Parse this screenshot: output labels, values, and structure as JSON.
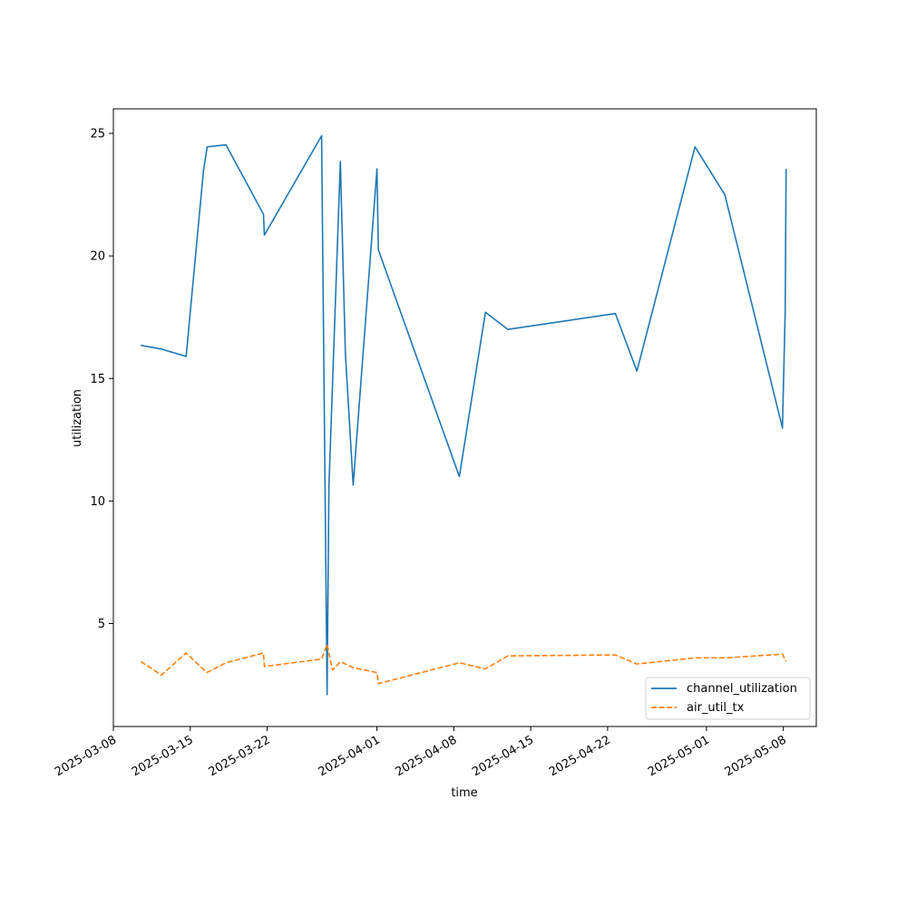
{
  "chart_data": {
    "type": "line",
    "title": "",
    "xlabel": "time",
    "ylabel": "utilization",
    "x_type": "datetime",
    "xlim": [
      "2025-03-08T00:00",
      "2025-05-11T00:00"
    ],
    "ylim": [
      0.8,
      26.0
    ],
    "x_ticks": [
      "2025-03-08",
      "2025-03-15",
      "2025-03-22",
      "2025-04-01",
      "2025-04-08",
      "2025-04-15",
      "2025-04-22",
      "2025-05-01",
      "2025-05-08"
    ],
    "y_ticks": [
      5,
      10,
      15,
      20,
      25
    ],
    "grid": false,
    "legend_position": "lower right",
    "series": [
      {
        "name": "channel_utilization",
        "color": "#1f77b4",
        "dash": "solid",
        "points": [
          {
            "x": "2025-03-10T12:00",
            "y": 16.35
          },
          {
            "x": "2025-03-12T09:00",
            "y": 16.2
          },
          {
            "x": "2025-03-14T15:00",
            "y": 15.9
          },
          {
            "x": "2025-03-16T05:00",
            "y": 23.5
          },
          {
            "x": "2025-03-16T13:00",
            "y": 24.45
          },
          {
            "x": "2025-03-18T06:00",
            "y": 24.53
          },
          {
            "x": "2025-03-21T16:00",
            "y": 21.7
          },
          {
            "x": "2025-03-21T18:00",
            "y": 20.85
          },
          {
            "x": "2025-03-26T23:00",
            "y": 24.9
          },
          {
            "x": "2025-03-27T11:00",
            "y": 2.1
          },
          {
            "x": "2025-03-27T15:00",
            "y": 10.6
          },
          {
            "x": "2025-03-28T16:00",
            "y": 23.85
          },
          {
            "x": "2025-03-29T03:00",
            "y": 16.0
          },
          {
            "x": "2025-03-29T20:00",
            "y": 10.65
          },
          {
            "x": "2025-04-01T00:00",
            "y": 23.55
          },
          {
            "x": "2025-04-01T03:00",
            "y": 20.25
          },
          {
            "x": "2025-04-08T12:00",
            "y": 11.0
          },
          {
            "x": "2025-04-10T21:00",
            "y": 17.7
          },
          {
            "x": "2025-04-12T22:00",
            "y": 17.0
          },
          {
            "x": "2025-04-22T17:00",
            "y": 17.65
          },
          {
            "x": "2025-04-24T16:00",
            "y": 15.3
          },
          {
            "x": "2025-04-29T23:00",
            "y": 24.45
          },
          {
            "x": "2025-05-02T16:00",
            "y": 22.5
          },
          {
            "x": "2025-05-07T22:00",
            "y": 12.98
          },
          {
            "x": "2025-05-08T04:00",
            "y": 17.7
          },
          {
            "x": "2025-05-08T06:00",
            "y": 23.55
          }
        ]
      },
      {
        "name": "air_util_tx",
        "color": "#ff7f0e",
        "dash": "dashed",
        "points": [
          {
            "x": "2025-03-10T12:00",
            "y": 3.45
          },
          {
            "x": "2025-03-12T09:00",
            "y": 2.9
          },
          {
            "x": "2025-03-14T15:00",
            "y": 3.8
          },
          {
            "x": "2025-03-16T12:00",
            "y": 3.0
          },
          {
            "x": "2025-03-18T06:00",
            "y": 3.4
          },
          {
            "x": "2025-03-21T16:00",
            "y": 3.8
          },
          {
            "x": "2025-03-21T18:00",
            "y": 3.25
          },
          {
            "x": "2025-03-26T23:00",
            "y": 3.55
          },
          {
            "x": "2025-03-27T11:00",
            "y": 4.15
          },
          {
            "x": "2025-03-27T23:00",
            "y": 3.1
          },
          {
            "x": "2025-03-28T16:00",
            "y": 3.45
          },
          {
            "x": "2025-03-29T20:00",
            "y": 3.2
          },
          {
            "x": "2025-04-01T00:00",
            "y": 3.0
          },
          {
            "x": "2025-04-01T03:00",
            "y": 2.55
          },
          {
            "x": "2025-04-08T12:00",
            "y": 3.4
          },
          {
            "x": "2025-04-10T21:00",
            "y": 3.15
          },
          {
            "x": "2025-04-12T22:00",
            "y": 3.68
          },
          {
            "x": "2025-04-22T17:00",
            "y": 3.72
          },
          {
            "x": "2025-04-24T16:00",
            "y": 3.35
          },
          {
            "x": "2025-04-29T23:00",
            "y": 3.6
          },
          {
            "x": "2025-05-02T16:00",
            "y": 3.6
          },
          {
            "x": "2025-05-07T22:00",
            "y": 3.75
          },
          {
            "x": "2025-05-08T06:00",
            "y": 3.45
          }
        ]
      }
    ]
  }
}
